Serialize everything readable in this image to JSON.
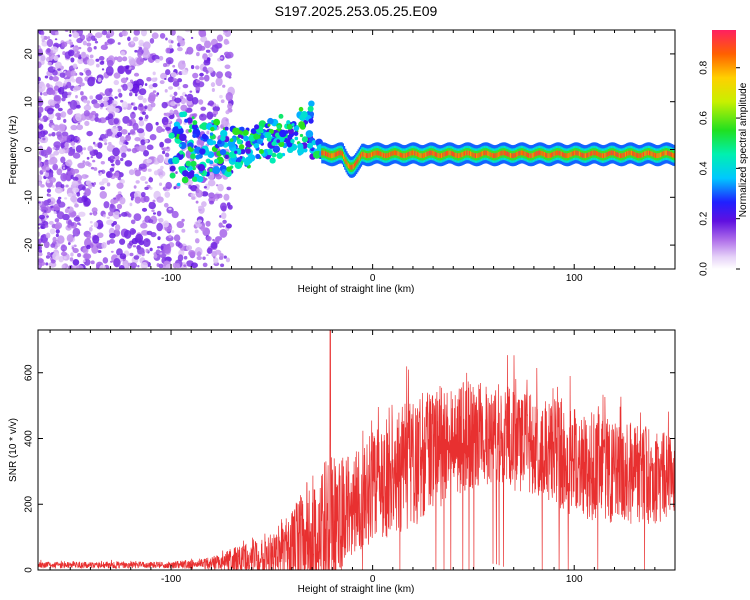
{
  "title": "S197.2025.253.05.25.E09",
  "chart_data": [
    {
      "type": "heatmap",
      "xlabel": "Height of straight line (km)",
      "ylabel": "Frequency (Hz)",
      "xlim": [
        -166,
        150
      ],
      "ylim": [
        -25,
        25
      ],
      "xticks": [
        -100,
        0,
        100
      ],
      "yticks": [
        -20,
        -10,
        0,
        10,
        20
      ],
      "colorbar": {
        "label": "Normalized spectral amplitude",
        "range": [
          0.0,
          0.95
        ],
        "ticks": [
          0.0,
          0.2,
          0.4,
          0.6,
          0.8
        ]
      },
      "description_series": [
        {
          "name": "noise_region",
          "x_range": [
            -166,
            -80
          ],
          "freq_range": [
            -25,
            25
          ],
          "amplitude": [
            0.05,
            0.2
          ]
        },
        {
          "name": "transition",
          "x_range": [
            -80,
            -25
          ],
          "freq_center": [
            0,
            8
          ],
          "amplitude": [
            0.2,
            0.6
          ]
        },
        {
          "name": "signal_line",
          "x_range": [
            -25,
            150
          ],
          "freq_center": -1,
          "amplitude": [
            0.6,
            0.95
          ]
        }
      ]
    },
    {
      "type": "line",
      "xlabel": "Height of straight line (km)",
      "ylabel": "SNR (10 * v/v)",
      "xlim": [
        -166,
        150
      ],
      "ylim": [
        0,
        730
      ],
      "xticks": [
        -100,
        0,
        100
      ],
      "yticks": [
        0,
        200,
        400,
        600
      ],
      "color": "#e83030",
      "envelope": {
        "x": [
          -166,
          -100,
          -80,
          -60,
          -40,
          -30,
          -20,
          -10,
          0,
          20,
          40,
          60,
          80,
          100,
          120,
          150
        ],
        "base": [
          15,
          15,
          20,
          40,
          80,
          120,
          150,
          200,
          250,
          330,
          400,
          420,
          380,
          330,
          300,
          280
        ],
        "amp": [
          10,
          10,
          20,
          50,
          100,
          180,
          200,
          150,
          170,
          200,
          180,
          160,
          160,
          170,
          160,
          140
        ]
      },
      "peak": {
        "x": -21,
        "y": 730
      }
    }
  ]
}
